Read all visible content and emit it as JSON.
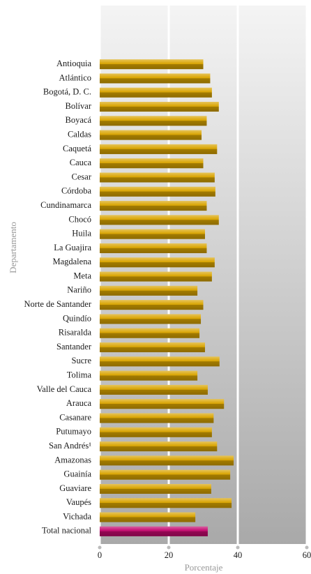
{
  "chart_data": {
    "type": "barh",
    "xlabel": "Porcentaje",
    "ylabel": "Departamento",
    "categories": [
      "Antioquia",
      "Atlántico",
      "Bogotá, D. C.",
      "Bolívar",
      "Boyacá",
      "Caldas",
      "Caquetá",
      "Cauca",
      "Cesar",
      "Córdoba",
      "Cundinamarca",
      "Chocó",
      "Huila",
      "La Guajira",
      "Magdalena",
      "Meta",
      "Nariño",
      "Norte de Santander",
      "Quindío",
      "Risaralda",
      "Santander",
      "Sucre",
      "Tolima",
      "Valle del Cauca",
      "Arauca",
      "Casanare",
      "Putumayo",
      "San Andrés¹",
      "Amazonas",
      "Guainía",
      "Guaviare",
      "Vaupés",
      "Vichada",
      "Total nacional"
    ],
    "values": [
      30,
      32,
      32.5,
      34.5,
      31,
      29.5,
      34,
      30,
      33.3,
      33.5,
      31,
      34.5,
      30.5,
      31,
      33.3,
      32.5,
      28.3,
      30,
      29.3,
      28.9,
      30.5,
      34.7,
      28.3,
      31.3,
      36,
      33,
      32.5,
      34,
      38.8,
      37.8,
      32.3,
      38.2,
      27.7,
      31.3
    ],
    "color": "#d9a400",
    "total_color": "#c4086e",
    "xlim": [
      0,
      60
    ],
    "xticks": [
      0,
      20,
      40,
      60
    ],
    "grid": true
  }
}
